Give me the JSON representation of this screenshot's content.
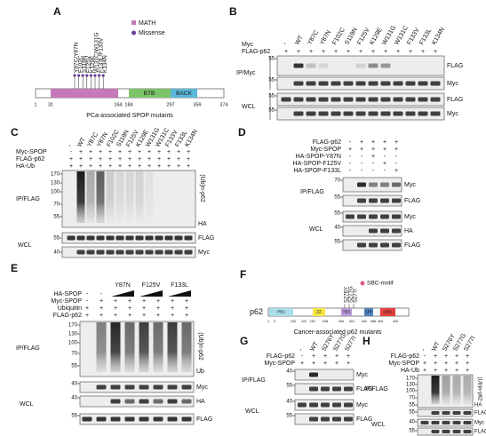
{
  "panels": {
    "A": {
      "label": "A",
      "legend": [
        "MATH",
        "Missense"
      ],
      "mutations": [
        "Y87C/Y87N",
        "F102C",
        "S119N",
        "F125V",
        "K129E",
        "W131C/W131G",
        "F133L/F133V",
        "K134N"
      ],
      "domains": [
        "BTB",
        "BACK"
      ],
      "positions": [
        "1",
        "31",
        "164",
        "184",
        "297",
        "359",
        "374"
      ],
      "caption": "PCa-associated SPOP mutants"
    },
    "B": {
      "label": "B",
      "rows": [
        "Myc",
        "FLAG-p62"
      ],
      "columns": [
        "-",
        "WT",
        "Y87C",
        "Y87N",
        "F102C",
        "S119N",
        "F125V",
        "K129E",
        "W131G",
        "W131C",
        "F133V",
        "F133L",
        "K134N"
      ],
      "signs": [
        [
          "+",
          "+",
          "+",
          "+",
          "+",
          "+",
          "+",
          "+",
          "+",
          "+",
          "+",
          "+",
          "+"
        ]
      ],
      "groups": [
        "IP/Myc",
        "WCL"
      ],
      "blots": [
        "FLAG",
        "Myc",
        "FLAG",
        "Myc"
      ],
      "markers": [
        "55",
        "55",
        "55",
        "55"
      ]
    },
    "C": {
      "label": "C",
      "rows": [
        "Myc-SPOP",
        "FLAG-p62",
        "HA-Ub"
      ],
      "columns": [
        "-",
        "WT",
        "Y87C",
        "Y87N",
        "F102C",
        "S119N",
        "F125V",
        "K129E",
        "W131G",
        "W131C",
        "F133V",
        "F133L",
        "K134N"
      ],
      "signs": [
        [
          "-",
          "+",
          "+",
          "+",
          "+",
          "+",
          "+",
          "+",
          "+",
          "+",
          "+",
          "+",
          "+"
        ],
        [
          "+",
          "+",
          "+",
          "+",
          "+",
          "+",
          "+",
          "+",
          "+",
          "+",
          "+",
          "+",
          "+"
        ],
        [
          "+",
          "+",
          "+",
          "+",
          "+",
          "+",
          "+",
          "+",
          "+",
          "+",
          "+",
          "+",
          "+"
        ]
      ],
      "groups": [
        "IP/FLAG",
        "WCL"
      ],
      "blots": [
        "(Ub)n-p62",
        "HA",
        "FLAG",
        "Myc"
      ],
      "markers": [
        "170",
        "130",
        "100",
        "70",
        "55",
        "55",
        "40"
      ]
    },
    "D": {
      "label": "D",
      "rows": [
        "FLAG-p62",
        "Myc-SPOP",
        "HA-SPOP-Y87N",
        "HA-SPOP-F125V",
        "HA-SPOP-F133L"
      ],
      "signs": [
        [
          "-",
          "+",
          "+",
          "+",
          "+"
        ],
        [
          "+",
          "+",
          "+",
          "+",
          "+"
        ],
        [
          "-",
          "-",
          "+",
          "-",
          "-"
        ],
        [
          "-",
          "-",
          "-",
          "+",
          "-"
        ],
        [
          "-",
          "-",
          "-",
          "-",
          "+"
        ]
      ],
      "groups": [
        "IP/FLAG",
        "WCL"
      ],
      "blots": [
        "Myc",
        "FLAG",
        "Myc",
        "HA",
        "FLAG"
      ],
      "markers": [
        "70",
        "55",
        "55",
        "40",
        "55"
      ]
    },
    "E": {
      "label": "E",
      "columns": [
        "Y87N",
        "F125V",
        "F133L"
      ],
      "rows": [
        "HA-SPOP",
        "Myc-SPOP",
        "Ubiquitin",
        "FLAG-p62"
      ],
      "signs": [
        [
          "-",
          "-"
        ],
        [
          "-",
          "+",
          "+",
          "+",
          "+",
          "+",
          "+",
          "+"
        ],
        [
          "+",
          "+",
          "+",
          "+",
          "+",
          "+",
          "+",
          "+"
        ],
        [
          "+",
          "+",
          "+",
          "+",
          "+",
          "+",
          "+",
          "+"
        ]
      ],
      "groups": [
        "IP/FLAG",
        "WCL"
      ],
      "blots": [
        "(Ub)n-p62",
        "Ub",
        "Myc",
        "HA",
        "FLAG"
      ],
      "markers": [
        "170",
        "130",
        "100",
        "70",
        "55",
        "40",
        "40",
        "55"
      ]
    },
    "F": {
      "label": "F",
      "legend": "SBC-motif",
      "mutations": [
        "S276Y",
        "S277G",
        "S277I"
      ],
      "protein": "p62",
      "domains": [
        "PB1",
        "ZZ",
        "TBS",
        "LIR",
        "UBA"
      ],
      "positions": [
        "1",
        "3",
        "102",
        "122",
        "167",
        "228",
        "254",
        "321",
        "342",
        "386",
        "404",
        "440"
      ],
      "caption": "Cancer-associated p62 mutants"
    },
    "G": {
      "label": "G",
      "rows": [
        "FLAG-p62",
        "Myc-SPOP"
      ],
      "columns": [
        "-",
        "WT",
        "S276Y",
        "S277G",
        "S277I"
      ],
      "signs": [
        [
          "-",
          "+",
          "+",
          "+",
          "+"
        ],
        [
          "+",
          "+",
          "+",
          "+",
          "+"
        ]
      ],
      "groups": [
        "IP/FLAG",
        "WCL"
      ],
      "blots": [
        "Myc",
        "FLAG",
        "Myc",
        "FLAG"
      ],
      "markers": [
        "40",
        "55",
        "40",
        "55"
      ]
    },
    "H": {
      "label": "H",
      "rows": [
        "FLAG-p62",
        "Myc-SPOP",
        "HA-Ub"
      ],
      "columns": [
        "-",
        "WT",
        "S276Y",
        "S277G",
        "S277I"
      ],
      "signs": [
        [
          "-",
          "+",
          "+",
          "+",
          "+"
        ],
        [
          "+",
          "+",
          "+",
          "+",
          "+"
        ],
        [
          "+",
          "+",
          "+",
          "+",
          "+"
        ]
      ],
      "groups": [
        "IP/FLAG",
        "WCL"
      ],
      "blots": [
        "(Ub)n-p62",
        "HA",
        "FLAG",
        "Myc",
        "FLAG"
      ],
      "markers": [
        "170",
        "130",
        "100",
        "70",
        "55",
        "55",
        "40",
        "55"
      ]
    }
  }
}
